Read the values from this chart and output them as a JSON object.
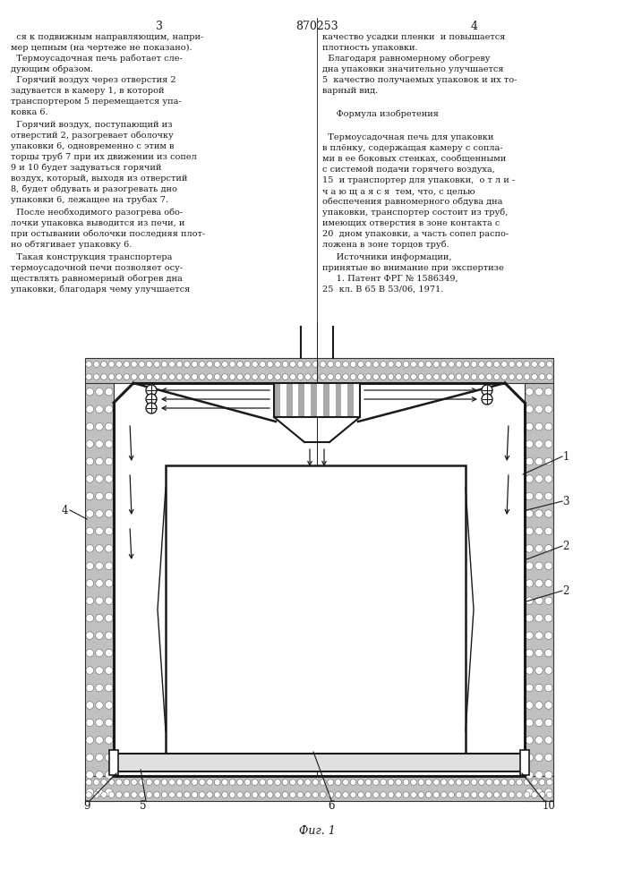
{
  "line_color": "#1a1a1a",
  "title": "870253",
  "fig_caption": "Фиг. 1",
  "page_left": "3",
  "page_right": "4"
}
